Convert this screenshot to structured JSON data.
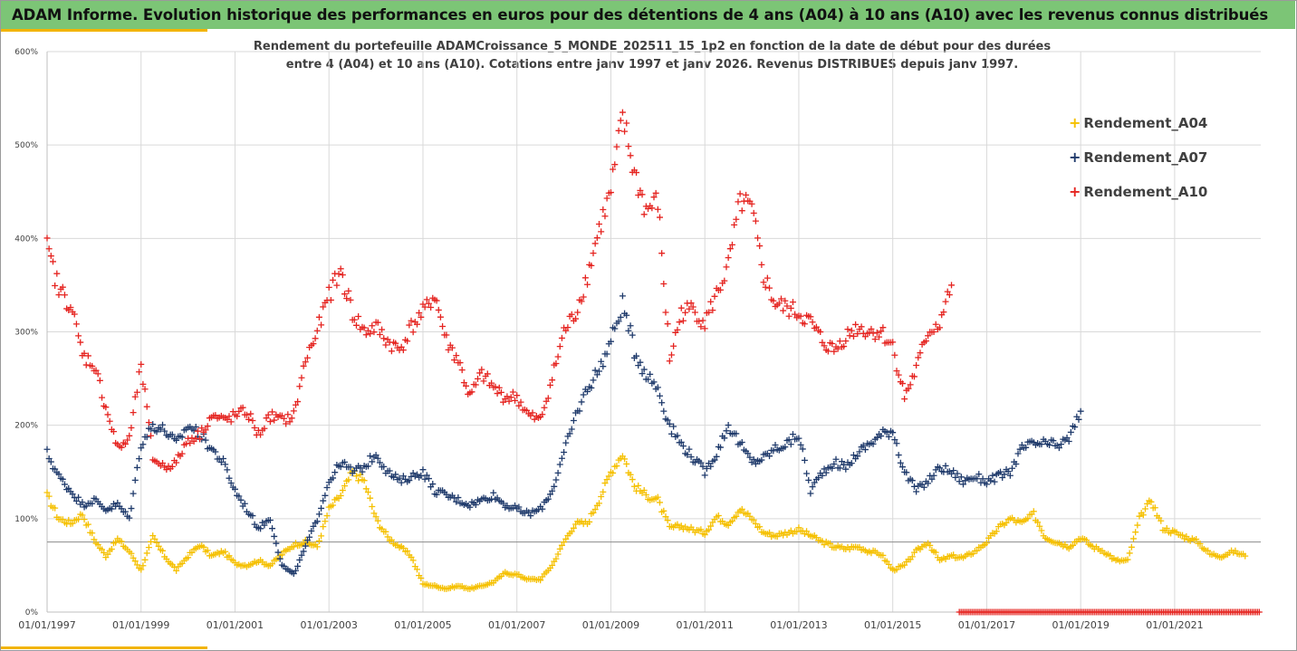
{
  "header": {
    "title": "ADAM Informe. Evolution historique des performances en euros pour des détentions de 4 ans (A04) à 10 ans (A10) avec les revenus connus distribués"
  },
  "chart_data": {
    "type": "scatter",
    "title": "Rendement du portefeuille ADAMCroissance_5_MONDE_202511_15_1p2  en fonction de la date de début pour des durées",
    "subtitle": "entre 4 (A04) et 10 ans (A10). Cotations entre janv 1997 et janv 2026. Revenus DISTRIBUES depuis janv 1997.",
    "xlabel": "",
    "ylabel": "",
    "x_tick_labels": [
      "01/01/1997",
      "01/01/1999",
      "01/01/2001",
      "01/01/2003",
      "01/01/2005",
      "01/01/2007",
      "01/01/2009",
      "01/01/2011",
      "01/01/2013",
      "01/01/2015",
      "01/01/2017",
      "01/01/2019",
      "01/01/2021"
    ],
    "y_tick_labels": [
      "0%",
      "100%",
      "200%",
      "300%",
      "400%",
      "500%",
      "600%"
    ],
    "xlim": [
      "1997-01-01",
      "2022-11-01"
    ],
    "ylim": [
      0,
      600
    ],
    "grid": true,
    "legend_position": "top-right",
    "reference_line": 75,
    "series": [
      {
        "name": "Rendement_A04",
        "color": "#f5c000",
        "points": [
          [
            "1997-01",
            125
          ],
          [
            "1997-04",
            100
          ],
          [
            "1997-07",
            95
          ],
          [
            "1997-10",
            105
          ],
          [
            "1998-01",
            78
          ],
          [
            "1998-04",
            60
          ],
          [
            "1998-07",
            78
          ],
          [
            "1998-10",
            65
          ],
          [
            "1999-01",
            45
          ],
          [
            "1999-04",
            80
          ],
          [
            "1999-07",
            60
          ],
          [
            "1999-10",
            45
          ],
          [
            "2000-01",
            60
          ],
          [
            "2000-04",
            72
          ],
          [
            "2000-07",
            60
          ],
          [
            "2000-10",
            65
          ],
          [
            "2001-01",
            52
          ],
          [
            "2001-04",
            50
          ],
          [
            "2001-07",
            55
          ],
          [
            "2001-10",
            50
          ],
          [
            "2002-01",
            62
          ],
          [
            "2002-04",
            72
          ],
          [
            "2002-07",
            75
          ],
          [
            "2002-10",
            70
          ],
          [
            "2003-01",
            110
          ],
          [
            "2003-04",
            125
          ],
          [
            "2003-07",
            150
          ],
          [
            "2003-10",
            140
          ],
          [
            "2004-01",
            100
          ],
          [
            "2004-04",
            80
          ],
          [
            "2004-07",
            70
          ],
          [
            "2004-10",
            60
          ],
          [
            "2005-01",
            30
          ],
          [
            "2005-04",
            28
          ],
          [
            "2005-07",
            25
          ],
          [
            "2005-10",
            28
          ],
          [
            "2006-01",
            25
          ],
          [
            "2006-04",
            28
          ],
          [
            "2006-07",
            32
          ],
          [
            "2006-10",
            42
          ],
          [
            "2007-01",
            40
          ],
          [
            "2007-04",
            35
          ],
          [
            "2007-07",
            35
          ],
          [
            "2007-10",
            50
          ],
          [
            "2008-01",
            75
          ],
          [
            "2008-04",
            95
          ],
          [
            "2008-07",
            95
          ],
          [
            "2008-10",
            120
          ],
          [
            "2009-01",
            150
          ],
          [
            "2009-04",
            170
          ],
          [
            "2009-07",
            135
          ],
          [
            "2009-10",
            125
          ],
          [
            "2010-01",
            120
          ],
          [
            "2010-04",
            90
          ],
          [
            "2010-07",
            92
          ],
          [
            "2010-10",
            88
          ],
          [
            "2011-01",
            85
          ],
          [
            "2011-04",
            102
          ],
          [
            "2011-07",
            95
          ],
          [
            "2011-10",
            110
          ],
          [
            "2012-01",
            100
          ],
          [
            "2012-04",
            85
          ],
          [
            "2012-07",
            82
          ],
          [
            "2012-10",
            85
          ],
          [
            "2013-01",
            88
          ],
          [
            "2013-04",
            82
          ],
          [
            "2013-07",
            75
          ],
          [
            "2013-10",
            70
          ],
          [
            "2014-01",
            68
          ],
          [
            "2014-04",
            70
          ],
          [
            "2014-07",
            65
          ],
          [
            "2014-10",
            62
          ],
          [
            "2015-01",
            45
          ],
          [
            "2015-04",
            50
          ],
          [
            "2015-07",
            65
          ],
          [
            "2015-10",
            75
          ],
          [
            "2016-01",
            55
          ],
          [
            "2016-04",
            60
          ],
          [
            "2016-07",
            58
          ],
          [
            "2016-10",
            65
          ],
          [
            "2017-01",
            75
          ],
          [
            "2017-04",
            90
          ],
          [
            "2017-07",
            100
          ],
          [
            "2017-10",
            95
          ],
          [
            "2018-01",
            105
          ],
          [
            "2018-04",
            80
          ],
          [
            "2018-07",
            75
          ],
          [
            "2018-10",
            70
          ],
          [
            "2019-01",
            80
          ],
          [
            "2019-04",
            70
          ],
          [
            "2019-07",
            65
          ],
          [
            "2019-10",
            55
          ],
          [
            "2020-01",
            55
          ],
          [
            "2020-04",
            100
          ],
          [
            "2020-07",
            120
          ],
          [
            "2020-10",
            90
          ],
          [
            "2021-01",
            85
          ],
          [
            "2021-04",
            80
          ],
          [
            "2021-07",
            75
          ],
          [
            "2021-10",
            62
          ],
          [
            "2022-01",
            60
          ],
          [
            "2022-04",
            65
          ],
          [
            "2022-07",
            60
          ]
        ]
      },
      {
        "name": "Rendement_A07",
        "color": "#1f3a6b",
        "points": [
          [
            "1997-01",
            170
          ],
          [
            "1997-04",
            145
          ],
          [
            "1997-07",
            130
          ],
          [
            "1997-10",
            115
          ],
          [
            "1998-01",
            120
          ],
          [
            "1998-04",
            110
          ],
          [
            "1998-07",
            115
          ],
          [
            "1998-10",
            100
          ],
          [
            "1999-01",
            180
          ],
          [
            "1999-04",
            200
          ],
          [
            "1999-07",
            195
          ],
          [
            "1999-10",
            180
          ],
          [
            "2000-01",
            200
          ],
          [
            "2000-04",
            190
          ],
          [
            "2000-07",
            175
          ],
          [
            "2000-10",
            160
          ],
          [
            "2001-01",
            130
          ],
          [
            "2001-04",
            110
          ],
          [
            "2001-07",
            90
          ],
          [
            "2001-10",
            100
          ],
          [
            "2002-01",
            50
          ],
          [
            "2002-04",
            40
          ],
          [
            "2002-07",
            70
          ],
          [
            "2002-10",
            100
          ],
          [
            "2003-01",
            140
          ],
          [
            "2003-04",
            160
          ],
          [
            "2003-07",
            150
          ],
          [
            "2003-10",
            155
          ],
          [
            "2004-01",
            170
          ],
          [
            "2004-04",
            150
          ],
          [
            "2004-07",
            140
          ],
          [
            "2004-10",
            145
          ],
          [
            "2005-01",
            150
          ],
          [
            "2005-04",
            130
          ],
          [
            "2005-07",
            125
          ],
          [
            "2005-10",
            120
          ],
          [
            "2006-01",
            115
          ],
          [
            "2006-04",
            120
          ],
          [
            "2006-07",
            125
          ],
          [
            "2006-10",
            115
          ],
          [
            "2007-01",
            110
          ],
          [
            "2007-04",
            105
          ],
          [
            "2007-07",
            110
          ],
          [
            "2007-10",
            130
          ],
          [
            "2008-01",
            170
          ],
          [
            "2008-04",
            210
          ],
          [
            "2008-07",
            240
          ],
          [
            "2008-10",
            260
          ],
          [
            "2009-01",
            290
          ],
          [
            "2009-04",
            330
          ],
          [
            "2009-07",
            280
          ],
          [
            "2009-10",
            255
          ],
          [
            "2010-01",
            240
          ],
          [
            "2010-04",
            200
          ],
          [
            "2010-07",
            180
          ],
          [
            "2010-10",
            165
          ],
          [
            "2011-01",
            150
          ],
          [
            "2011-04",
            170
          ],
          [
            "2011-07",
            200
          ],
          [
            "2011-10",
            180
          ],
          [
            "2012-01",
            160
          ],
          [
            "2012-04",
            165
          ],
          [
            "2012-07",
            175
          ],
          [
            "2012-10",
            180
          ],
          [
            "2013-01",
            190
          ],
          [
            "2013-04",
            130
          ],
          [
            "2013-07",
            150
          ],
          [
            "2013-10",
            160
          ],
          [
            "2014-01",
            155
          ],
          [
            "2014-04",
            170
          ],
          [
            "2014-07",
            180
          ],
          [
            "2014-10",
            190
          ],
          [
            "2015-01",
            195
          ],
          [
            "2015-04",
            150
          ],
          [
            "2015-07",
            130
          ],
          [
            "2015-10",
            140
          ],
          [
            "2016-01",
            155
          ],
          [
            "2016-04",
            150
          ],
          [
            "2016-07",
            140
          ],
          [
            "2016-10",
            145
          ],
          [
            "2017-01",
            140
          ],
          [
            "2017-04",
            145
          ],
          [
            "2017-07",
            150
          ],
          [
            "2017-10",
            175
          ],
          [
            "2018-01",
            180
          ],
          [
            "2018-04",
            180
          ],
          [
            "2018-07",
            178
          ],
          [
            "2018-10",
            185
          ],
          [
            "2019-01",
            215
          ]
        ]
      },
      {
        "name": "Rendement_A10",
        "color": "#e52420",
        "points": [
          [
            "1997-01",
            390
          ],
          [
            "1997-04",
            345
          ],
          [
            "1997-07",
            330
          ],
          [
            "1997-10",
            275
          ],
          [
            "1998-01",
            265
          ],
          [
            "1998-04",
            220
          ],
          [
            "1998-07",
            175
          ],
          [
            "1998-10",
            185
          ],
          [
            "1999-01",
            265
          ],
          [
            "1999-04",
            165
          ],
          [
            "1999-07",
            155
          ],
          [
            "1999-10",
            160
          ],
          [
            "2000-01",
            185
          ],
          [
            "2000-04",
            190
          ],
          [
            "2000-07",
            210
          ],
          [
            "2000-10",
            205
          ],
          [
            "2001-01",
            210
          ],
          [
            "2001-04",
            215
          ],
          [
            "2001-07",
            190
          ],
          [
            "2001-10",
            210
          ],
          [
            "2002-01",
            205
          ],
          [
            "2002-04",
            210
          ],
          [
            "2002-07",
            270
          ],
          [
            "2002-10",
            300
          ],
          [
            "2003-01",
            340
          ],
          [
            "2003-04",
            365
          ],
          [
            "2003-07",
            320
          ],
          [
            "2003-10",
            300
          ],
          [
            "2004-01",
            305
          ],
          [
            "2004-04",
            290
          ],
          [
            "2004-07",
            280
          ],
          [
            "2004-10",
            305
          ],
          [
            "2005-01",
            320
          ],
          [
            "2005-04",
            340
          ],
          [
            "2005-07",
            290
          ],
          [
            "2005-10",
            270
          ],
          [
            "2006-01",
            230
          ],
          [
            "2006-04",
            255
          ],
          [
            "2006-07",
            240
          ],
          [
            "2006-10",
            230
          ],
          [
            "2007-01",
            230
          ],
          [
            "2007-04",
            210
          ],
          [
            "2007-07",
            205
          ],
          [
            "2007-10",
            250
          ],
          [
            "2008-01",
            300
          ],
          [
            "2008-04",
            320
          ],
          [
            "2008-07",
            360
          ],
          [
            "2008-10",
            410
          ],
          [
            "2009-01",
            450
          ],
          [
            "2009-04",
            530
          ],
          [
            "2009-07",
            470
          ],
          [
            "2009-10",
            430
          ],
          [
            "2010-01",
            440
          ],
          [
            "2010-04",
            270
          ],
          [
            "2010-07",
            320
          ],
          [
            "2010-10",
            325
          ],
          [
            "2011-01",
            310
          ],
          [
            "2011-04",
            340
          ],
          [
            "2011-07",
            370
          ],
          [
            "2011-10",
            440
          ],
          [
            "2012-01",
            430
          ],
          [
            "2012-04",
            360
          ],
          [
            "2012-07",
            330
          ],
          [
            "2012-10",
            325
          ],
          [
            "2013-01",
            320
          ],
          [
            "2013-04",
            310
          ],
          [
            "2013-07",
            290
          ],
          [
            "2013-10",
            280
          ],
          [
            "2014-01",
            295
          ],
          [
            "2014-04",
            305
          ],
          [
            "2014-07",
            300
          ],
          [
            "2014-10",
            300
          ],
          [
            "2015-01",
            285
          ],
          [
            "2015-04",
            230
          ],
          [
            "2015-07",
            260
          ],
          [
            "2015-10",
            300
          ],
          [
            "2016-01",
            310
          ],
          [
            "2016-04",
            350
          ]
        ]
      }
    ],
    "zero_points": {
      "series": "Rendement_A10",
      "value": 0,
      "from": "2016-06",
      "to": "2022-11"
    }
  }
}
